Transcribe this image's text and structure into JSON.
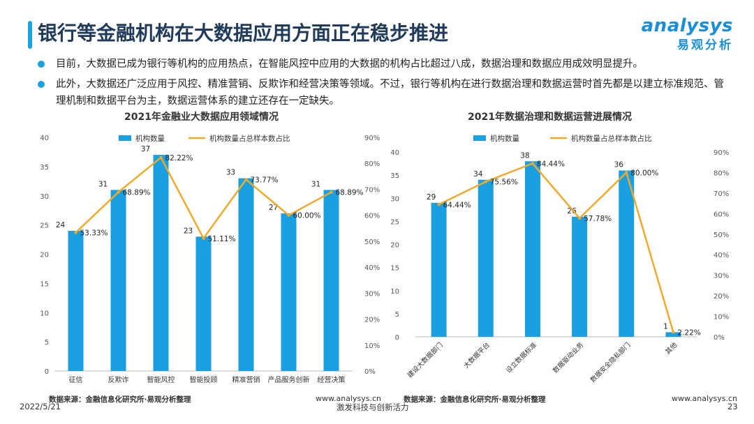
{
  "header": {
    "title": "银行等金融机构在大数据应用方面正在稳步推进",
    "logo_en": "analysys",
    "logo_cn": "易观分析"
  },
  "bullets": [
    "目前，大数据已成为银行等机构的应用热点，在智能风控中应用的大数据的机构占比超过八成，数据治理和数据应用成效明显提升。",
    "此外，大数据还广泛应用于风控、精准营销、反欺诈和经营决策等领域。不过，银行等机构在进行数据治理和数据运营时首先都是以建立标准规范、管理机制和数据平台为主，数据运营体系的建立还存在一定缺失。"
  ],
  "colors": {
    "bar": "#1a9fe0",
    "line": "#f0a92a",
    "accent": "#1aa3e0"
  },
  "chart_data": [
    {
      "type": "bar+line",
      "title": "2021年金融业大数据应用领域情况",
      "legend": [
        "机构数量",
        "机构数量占总样本数占比"
      ],
      "categories": [
        "征信",
        "反欺诈",
        "智能风控",
        "智能投顾",
        "精准营销",
        "产品服务创新",
        "经营决策"
      ],
      "series": [
        {
          "name": "机构数量",
          "type": "bar",
          "axis": "left",
          "values": [
            24,
            31,
            37,
            23,
            33,
            27,
            31
          ]
        },
        {
          "name": "机构数量占总样本数占比",
          "type": "line",
          "axis": "right",
          "values": [
            53.33,
            68.89,
            82.22,
            51.11,
            73.77,
            60.0,
            68.89
          ],
          "labels": [
            "53.33%",
            "68.89%",
            "82.22%",
            "51.11%",
            "73.77%",
            "60.00%",
            "68.89%"
          ]
        }
      ],
      "yleft_ticks": [
        "0",
        "5",
        "10",
        "15",
        "20",
        "25",
        "30",
        "35",
        "40"
      ],
      "yright_ticks": [
        "0%",
        "10%",
        "20%",
        "30%",
        "40%",
        "50%",
        "60%",
        "70%",
        "80%",
        "90%"
      ],
      "ylim_left": [
        0,
        40
      ],
      "ylim_right": [
        0,
        90
      ],
      "source": "数据来源：金融信息化研究所·易观分析整理",
      "url": "www.analysys.cn"
    },
    {
      "type": "bar+line",
      "title": "2021年数据治理和数据运营进展情况",
      "legend": [
        "机构数量",
        "机构数量占总样本数占比"
      ],
      "categories": [
        "建设大数据部门",
        "大数据平台",
        "设立数据标准",
        "数据驱动业务",
        "数据安全隐私部门",
        "其他"
      ],
      "series": [
        {
          "name": "机构数量",
          "type": "bar",
          "axis": "left",
          "values": [
            29,
            34,
            38,
            26,
            36,
            1
          ]
        },
        {
          "name": "机构数量占总样本数占比",
          "type": "line",
          "axis": "right",
          "values": [
            64.44,
            75.56,
            84.44,
            57.78,
            80.0,
            2.22
          ],
          "labels": [
            "64.44%",
            "75.56%",
            "84.44%",
            "57.78%",
            "80.00%",
            "2.22%"
          ]
        }
      ],
      "yleft_ticks": [
        "0",
        "5",
        "10",
        "15",
        "20",
        "25",
        "30",
        "35",
        "40"
      ],
      "yright_ticks": [
        "0%",
        "10%",
        "20%",
        "30%",
        "40%",
        "50%",
        "60%",
        "70%",
        "80%",
        "90%"
      ],
      "ylim_left": [
        0,
        40
      ],
      "ylim_right": [
        0,
        90
      ],
      "source": "数据来源：金融信息化研究所·易观分析整理",
      "url": "www.analysys.cn"
    }
  ],
  "footer": {
    "date": "2022/5/21",
    "slogan": "激发科技与创新活力",
    "page": "23"
  }
}
